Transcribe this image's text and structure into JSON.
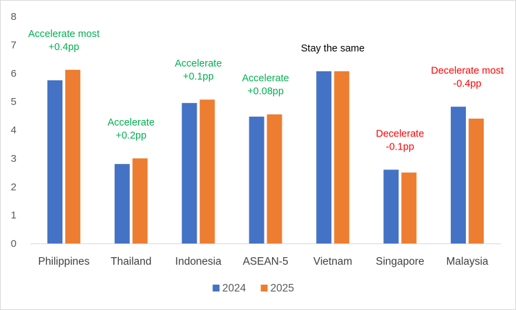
{
  "chart_data": {
    "type": "bar",
    "title": "",
    "xlabel": "",
    "ylabel": "",
    "ylim": [
      0,
      8
    ],
    "yticks": [
      0,
      1,
      2,
      3,
      4,
      5,
      6,
      7,
      8
    ],
    "grid": false,
    "legend_position": "bottom",
    "categories": [
      "Philippines",
      "Thailand",
      "Indonesia",
      "ASEAN-5",
      "Vietnam",
      "Singapore",
      "Malaysia"
    ],
    "series": [
      {
        "name": "2024",
        "color": "#4472C4",
        "values": [
          5.75,
          2.8,
          4.95,
          4.47,
          6.07,
          2.6,
          4.82
        ]
      },
      {
        "name": "2025",
        "color": "#ED7D31",
        "values": [
          6.12,
          3.0,
          5.07,
          4.55,
          6.07,
          2.5,
          4.4
        ]
      }
    ],
    "annotations": [
      {
        "category": "Philippines",
        "lines": [
          "Accelerate most",
          "+0.4pp"
        ],
        "color": "#00B050"
      },
      {
        "category": "Thailand",
        "lines": [
          "Accelerate",
          "+0.2pp"
        ],
        "color": "#00B050"
      },
      {
        "category": "Indonesia",
        "lines": [
          "Accelerate",
          "+0.1pp"
        ],
        "color": "#00B050"
      },
      {
        "category": "ASEAN-5",
        "lines": [
          "Accelerate",
          "+0.08pp"
        ],
        "color": "#00B050"
      },
      {
        "category": "Vietnam",
        "lines": [
          "Stay the same"
        ],
        "color": "#000000"
      },
      {
        "category": "Singapore",
        "lines": [
          "Decelerate",
          "-0.1pp"
        ],
        "color": "#FF0000"
      },
      {
        "category": "Malaysia",
        "lines": [
          "Decelerate most",
          "-0.4pp"
        ],
        "color": "#FF0000"
      }
    ]
  }
}
